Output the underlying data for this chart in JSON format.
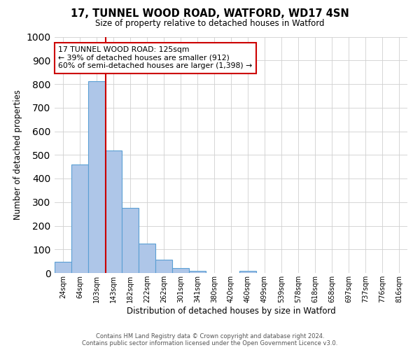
{
  "title": "17, TUNNEL WOOD ROAD, WATFORD, WD17 4SN",
  "subtitle": "Size of property relative to detached houses in Watford",
  "xlabel": "Distribution of detached houses by size in Watford",
  "ylabel": "Number of detached properties",
  "bar_labels": [
    "24sqm",
    "64sqm",
    "103sqm",
    "143sqm",
    "182sqm",
    "222sqm",
    "262sqm",
    "301sqm",
    "341sqm",
    "380sqm",
    "420sqm",
    "460sqm",
    "499sqm",
    "539sqm",
    "578sqm",
    "618sqm",
    "658sqm",
    "697sqm",
    "737sqm",
    "776sqm",
    "816sqm"
  ],
  "bar_values": [
    46,
    460,
    812,
    520,
    275,
    125,
    57,
    22,
    10,
    0,
    0,
    8,
    0,
    0,
    0,
    0,
    0,
    0,
    0,
    0,
    0
  ],
  "bar_color": "#aec6e8",
  "bar_edge_color": "#5a9fd4",
  "vline_color": "#cc0000",
  "vline_x_index": 2.67,
  "annotation_text": "17 TUNNEL WOOD ROAD: 125sqm\n← 39% of detached houses are smaller (912)\n60% of semi-detached houses are larger (1,398) →",
  "annotation_box_color": "#ffffff",
  "annotation_box_edge_color": "#cc0000",
  "ylim": [
    0,
    1000
  ],
  "yticks": [
    0,
    100,
    200,
    300,
    400,
    500,
    600,
    700,
    800,
    900,
    1000
  ],
  "footer_line1": "Contains HM Land Registry data © Crown copyright and database right 2024.",
  "footer_line2": "Contains public sector information licensed under the Open Government Licence v3.0.",
  "background_color": "#ffffff",
  "grid_color": "#d0d0d0",
  "n_bins": 21
}
